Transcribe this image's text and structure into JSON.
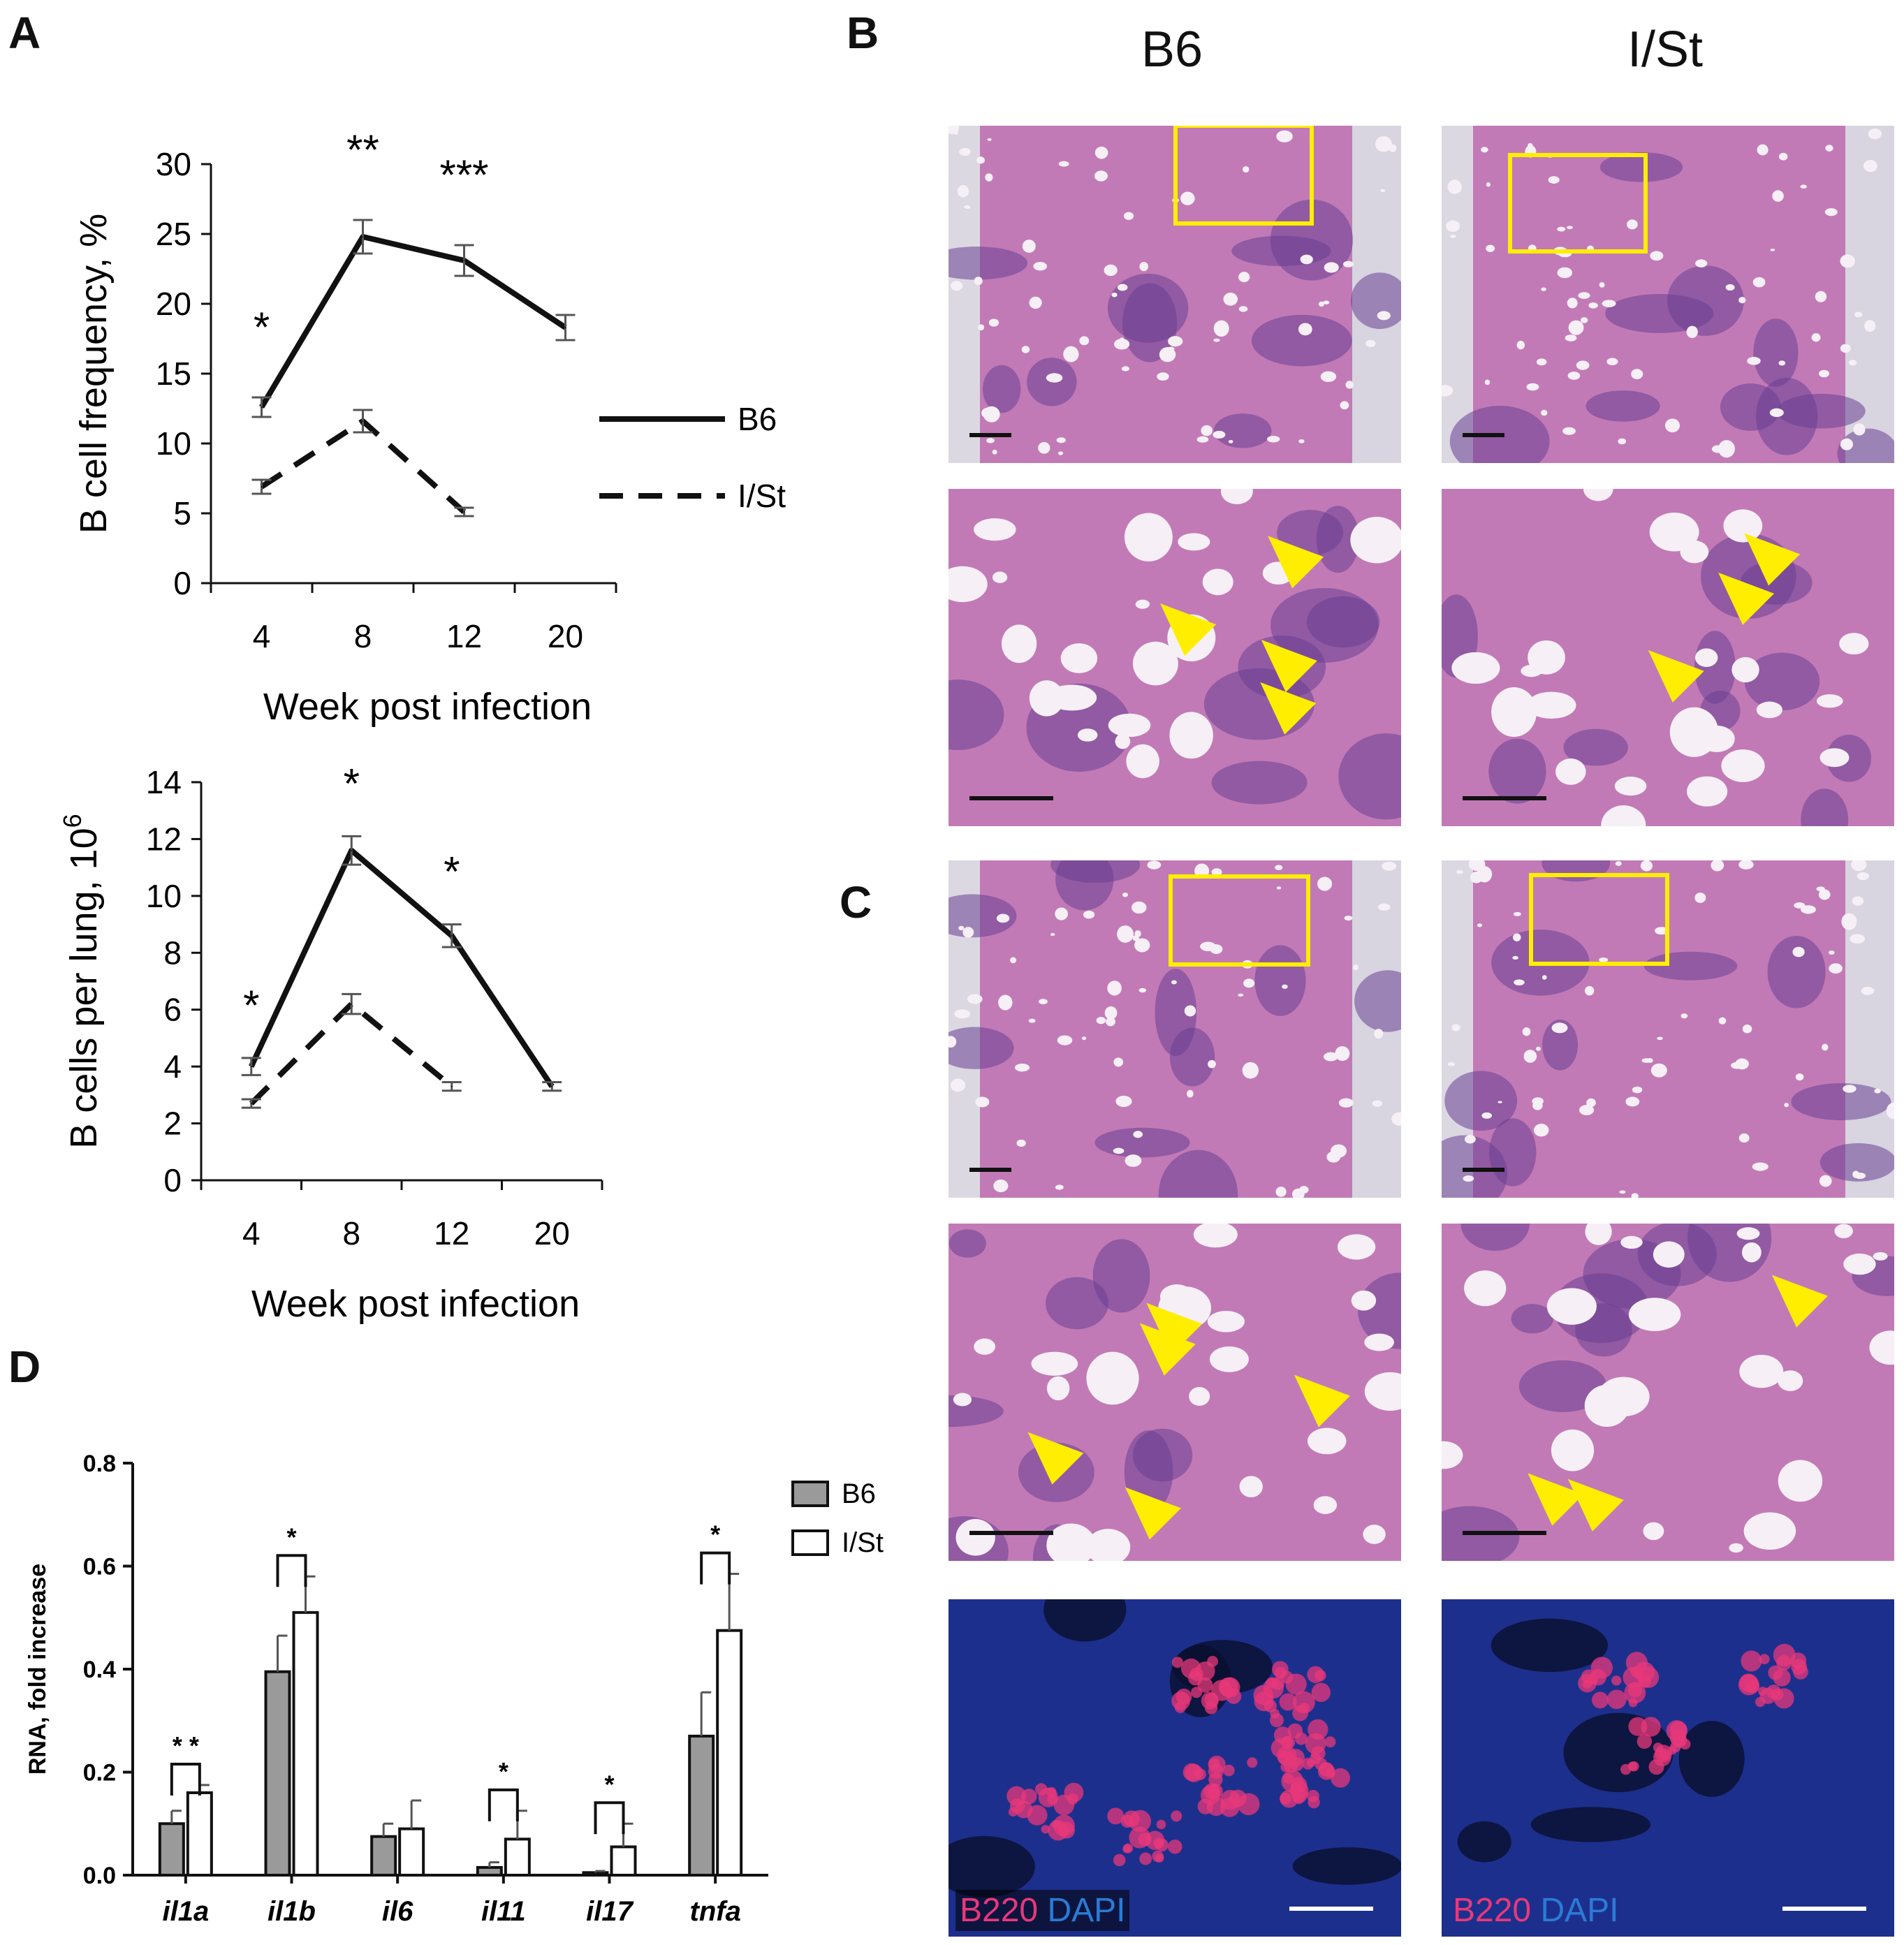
{
  "panel_labels": {
    "a": "A",
    "b": "B",
    "c": "C",
    "d": "D"
  },
  "column_headers": {
    "left": "B6",
    "right": "I/St"
  },
  "fluor_labels": {
    "marker": "B220",
    "stain": "DAPI"
  },
  "colors": {
    "he_tissue": "#c27ab6",
    "he_infiltrate": "#6a3f94",
    "arrow": "#ffee00",
    "fluor_bg": "#1d2f8c",
    "fluor_b220": "#e8387a"
  },
  "chart_data": [
    {
      "type": "line",
      "ylabel": "B cell frequency, %",
      "xlabel": "Week post infection",
      "categories": [
        "4",
        "8",
        "12",
        "20"
      ],
      "ylim": [
        0,
        30
      ],
      "yticks": [
        "0",
        "5",
        "10",
        "15",
        "20",
        "25",
        "30"
      ],
      "series": [
        {
          "name": "B6",
          "values": [
            12.6,
            24.8,
            23.1,
            18.3
          ],
          "errors": [
            0.7,
            1.2,
            1.1,
            0.9
          ],
          "style": "solid"
        },
        {
          "name": "I/St",
          "values": [
            6.9,
            11.6,
            5.1,
            null
          ],
          "errors": [
            0.5,
            0.8,
            0.3,
            null
          ],
          "style": "dashed"
        }
      ],
      "significance": [
        {
          "category": "4",
          "label": "*"
        },
        {
          "category": "8",
          "label": "**"
        },
        {
          "category": "12",
          "label": "***"
        }
      ],
      "legend_placement": "right"
    },
    {
      "type": "line",
      "ylabel": "B cells per lung, 10",
      "ylabel_superscript": "6",
      "xlabel": "Week post infection",
      "categories": [
        "4",
        "8",
        "12",
        "20"
      ],
      "ylim": [
        0,
        14
      ],
      "yticks": [
        "0",
        "2",
        "4",
        "6",
        "8",
        "10",
        "12",
        "14"
      ],
      "series": [
        {
          "name": "B6",
          "values": [
            4.0,
            11.6,
            8.6,
            3.3
          ],
          "errors": [
            0.3,
            0.5,
            0.4,
            0.15
          ],
          "style": "solid"
        },
        {
          "name": "I/St",
          "values": [
            2.7,
            6.2,
            3.3,
            null
          ],
          "errors": [
            0.15,
            0.35,
            0.15,
            null
          ],
          "style": "dashed"
        }
      ],
      "significance": [
        {
          "category": "4",
          "label": "*"
        },
        {
          "category": "8",
          "label": "*"
        },
        {
          "category": "12",
          "label": "*"
        }
      ]
    },
    {
      "type": "bar",
      "ylabel": "RNA, fold increase",
      "categories": [
        "il1a",
        "il1b",
        "il6",
        "il11",
        "il17",
        "tnfa"
      ],
      "ylim": [
        0,
        0.8
      ],
      "yticks": [
        "0.0",
        "0.2",
        "0.4",
        "0.6",
        "0.8"
      ],
      "series": [
        {
          "name": "B6",
          "values": [
            0.1,
            0.395,
            0.075,
            0.015,
            0.005,
            0.27
          ],
          "errors": [
            0.025,
            0.07,
            0.025,
            0.01,
            0.003,
            0.085
          ]
        },
        {
          "name": "I/St",
          "values": [
            0.16,
            0.51,
            0.09,
            0.07,
            0.055,
            0.475
          ],
          "errors": [
            0.015,
            0.07,
            0.055,
            0.055,
            0.045,
            0.11
          ]
        }
      ],
      "significance": [
        {
          "category": "il1a",
          "label": "* *"
        },
        {
          "category": "il1b",
          "label": "*"
        },
        {
          "category": "il11",
          "label": "*"
        },
        {
          "category": "il17",
          "label": "*"
        },
        {
          "category": "tnfa",
          "label": "*"
        }
      ],
      "legend_placement": "top-right"
    }
  ]
}
